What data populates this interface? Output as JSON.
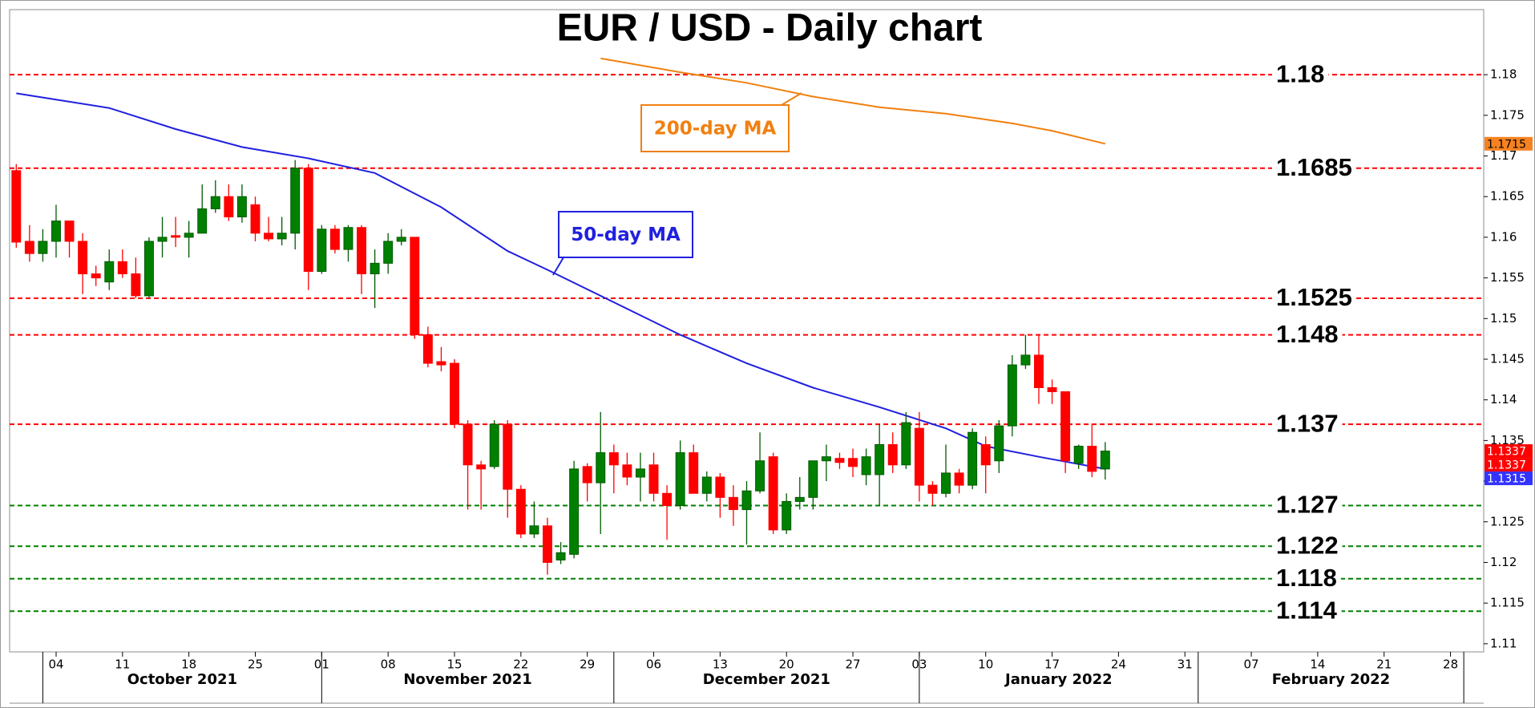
{
  "chart_data": {
    "type": "candlestick",
    "title": "EUR / USD - Daily chart",
    "xlim": [
      "2021-09-29",
      "2022-03-02"
    ],
    "ylim": [
      1.109,
      1.188
    ],
    "yticks": [
      1.11,
      1.115,
      1.12,
      1.125,
      1.13,
      1.135,
      1.14,
      1.145,
      1.15,
      1.155,
      1.16,
      1.165,
      1.17,
      1.175,
      1.18
    ],
    "xticks": [
      {
        "value": "2021-10-04",
        "label": "04"
      },
      {
        "value": "2021-10-11",
        "label": "11"
      },
      {
        "value": "2021-10-18",
        "label": "18"
      },
      {
        "value": "2021-10-25",
        "label": "25"
      },
      {
        "value": "2021-11-01",
        "label": "01"
      },
      {
        "value": "2021-11-08",
        "label": "08"
      },
      {
        "value": "2021-11-15",
        "label": "15"
      },
      {
        "value": "2021-11-22",
        "label": "22"
      },
      {
        "value": "2021-11-29",
        "label": "29"
      },
      {
        "value": "2021-12-06",
        "label": "06"
      },
      {
        "value": "2021-12-13",
        "label": "13"
      },
      {
        "value": "2021-12-20",
        "label": "20"
      },
      {
        "value": "2021-12-27",
        "label": "27"
      },
      {
        "value": "2022-01-03",
        "label": "03"
      },
      {
        "value": "2022-01-10",
        "label": "10"
      },
      {
        "value": "2022-01-17",
        "label": "17"
      },
      {
        "value": "2022-01-24",
        "label": "24"
      },
      {
        "value": "2022-01-31",
        "label": "31"
      },
      {
        "value": "2022-02-07",
        "label": "07"
      },
      {
        "value": "2022-02-14",
        "label": "14"
      },
      {
        "value": "2022-02-21",
        "label": "21"
      },
      {
        "value": "2022-02-28",
        "label": "28"
      }
    ],
    "months": [
      {
        "value": "2021-10",
        "label": "October 2021"
      },
      {
        "value": "2021-11",
        "label": "November 2021"
      },
      {
        "value": "2021-12",
        "label": "December 2021"
      },
      {
        "value": "2022-01",
        "label": "January 2022"
      },
      {
        "value": "2022-02",
        "label": "February 2022"
      }
    ],
    "up_color": "#008000",
    "down_color": "#ff0000",
    "x": [
      "2021-09-29",
      "2021-09-30",
      "2021-10-01",
      "2021-10-04",
      "2021-10-05",
      "2021-10-06",
      "2021-10-07",
      "2021-10-08",
      "2021-10-11",
      "2021-10-12",
      "2021-10-13",
      "2021-10-14",
      "2021-10-15",
      "2021-10-18",
      "2021-10-19",
      "2021-10-20",
      "2021-10-21",
      "2021-10-22",
      "2021-10-25",
      "2021-10-26",
      "2021-10-27",
      "2021-10-28",
      "2021-10-29",
      "2021-11-01",
      "2021-11-02",
      "2021-11-03",
      "2021-11-04",
      "2021-11-05",
      "2021-11-08",
      "2021-11-09",
      "2021-11-10",
      "2021-11-11",
      "2021-11-12",
      "2021-11-15",
      "2021-11-16",
      "2021-11-17",
      "2021-11-18",
      "2021-11-19",
      "2021-11-22",
      "2021-11-23",
      "2021-11-24",
      "2021-11-25",
      "2021-11-26",
      "2021-11-29",
      "2021-11-30",
      "2021-12-01",
      "2021-12-02",
      "2021-12-03",
      "2021-12-06",
      "2021-12-07",
      "2021-12-08",
      "2021-12-09",
      "2021-12-10",
      "2021-12-13",
      "2021-12-14",
      "2021-12-15",
      "2021-12-16",
      "2021-12-17",
      "2021-12-20",
      "2021-12-21",
      "2021-12-22",
      "2021-12-23",
      "2021-12-24",
      "2021-12-27",
      "2021-12-28",
      "2021-12-29",
      "2021-12-30",
      "2021-12-31",
      "2022-01-03",
      "2022-01-04",
      "2022-01-05",
      "2022-01-06",
      "2022-01-07",
      "2022-01-10",
      "2022-01-11",
      "2022-01-12",
      "2022-01-13",
      "2022-01-14",
      "2022-01-17",
      "2022-01-18",
      "2022-01-19",
      "2022-01-20",
      "2022-01-21"
    ],
    "open": [
      1.1682,
      1.1595,
      1.158,
      1.1595,
      1.162,
      1.1595,
      1.1555,
      1.1545,
      1.157,
      1.1555,
      1.1528,
      1.1595,
      1.1602,
      1.16,
      1.1605,
      1.1635,
      1.165,
      1.1625,
      1.164,
      1.1605,
      1.1598,
      1.1605,
      1.1685,
      1.1558,
      1.161,
      1.1585,
      1.1612,
      1.1555,
      1.1568,
      1.1595,
      1.16,
      1.148,
      1.1447,
      1.1445,
      1.137,
      1.132,
      1.1318,
      1.137,
      1.129,
      1.1235,
      1.1245,
      1.1203,
      1.121,
      1.1318,
      1.1298,
      1.1335,
      1.132,
      1.1305,
      1.132,
      1.1285,
      1.127,
      1.1335,
      1.1285,
      1.1305,
      1.128,
      1.1265,
      1.1288,
      1.133,
      1.124,
      1.1275,
      1.128,
      1.1325,
      1.1328,
      1.1328,
      1.1308,
      1.1308,
      1.1345,
      1.132,
      1.1365,
      1.1295,
      1.1285,
      1.131,
      1.1295,
      1.1345,
      1.1325,
      1.1368,
      1.1443,
      1.1455,
      1.1415,
      1.141,
      1.1322,
      1.1343,
      1.1315
    ],
    "high": [
      1.169,
      1.1615,
      1.161,
      1.164,
      1.162,
      1.1605,
      1.1565,
      1.1585,
      1.1585,
      1.1575,
      1.16,
      1.1625,
      1.1625,
      1.162,
      1.1665,
      1.167,
      1.1665,
      1.1665,
      1.165,
      1.1625,
      1.1625,
      1.1695,
      1.169,
      1.1615,
      1.1615,
      1.1615,
      1.1615,
      1.1585,
      1.1605,
      1.161,
      1.16,
      1.149,
      1.1465,
      1.145,
      1.1375,
      1.1325,
      1.1375,
      1.1375,
      1.1295,
      1.1275,
      1.1255,
      1.1225,
      1.1325,
      1.1322,
      1.1385,
      1.1345,
      1.1335,
      1.1335,
      1.1335,
      1.1295,
      1.135,
      1.1345,
      1.1312,
      1.131,
      1.1295,
      1.13,
      1.136,
      1.1335,
      1.1285,
      1.1305,
      1.1325,
      1.1345,
      1.1335,
      1.134,
      1.134,
      1.137,
      1.136,
      1.1385,
      1.1385,
      1.13,
      1.1345,
      1.1315,
      1.1365,
      1.1355,
      1.1375,
      1.1455,
      1.148,
      1.148,
      1.1425,
      1.141,
      1.1345,
      1.137,
      1.1348
    ],
    "low": [
      1.1587,
      1.157,
      1.157,
      1.1575,
      1.1575,
      1.153,
      1.154,
      1.1535,
      1.155,
      1.1525,
      1.1525,
      1.1575,
      1.1588,
      1.1575,
      1.1605,
      1.163,
      1.162,
      1.1618,
      1.1595,
      1.1595,
      1.159,
      1.1585,
      1.1535,
      1.1555,
      1.158,
      1.157,
      1.153,
      1.1513,
      1.1555,
      1.159,
      1.1475,
      1.144,
      1.1435,
      1.1365,
      1.1265,
      1.1265,
      1.1315,
      1.1255,
      1.123,
      1.123,
      1.1185,
      1.1198,
      1.1205,
      1.1275,
      1.1235,
      1.1285,
      1.1295,
      1.1275,
      1.1275,
      1.1228,
      1.1265,
      1.1285,
      1.1275,
      1.1255,
      1.1245,
      1.1222,
      1.1285,
      1.1235,
      1.1235,
      1.1265,
      1.1265,
      1.13,
      1.1315,
      1.1305,
      1.1295,
      1.127,
      1.131,
      1.1315,
      1.1275,
      1.127,
      1.128,
      1.1285,
      1.129,
      1.1285,
      1.131,
      1.1355,
      1.1438,
      1.1395,
      1.1395,
      1.131,
      1.1315,
      1.1305,
      1.1302
    ],
    "close": [
      1.1594,
      1.158,
      1.1595,
      1.162,
      1.1595,
      1.1555,
      1.155,
      1.157,
      1.1555,
      1.1528,
      1.1595,
      1.16,
      1.16,
      1.1605,
      1.1635,
      1.165,
      1.1625,
      1.165,
      1.1605,
      1.1598,
      1.1605,
      1.1685,
      1.1558,
      1.161,
      1.1585,
      1.1612,
      1.1555,
      1.1568,
      1.1595,
      1.16,
      1.148,
      1.1445,
      1.1443,
      1.137,
      1.132,
      1.1315,
      1.137,
      1.129,
      1.1235,
      1.1245,
      1.12,
      1.1212,
      1.1315,
      1.1298,
      1.1335,
      1.132,
      1.1305,
      1.1315,
      1.1285,
      1.127,
      1.1335,
      1.1285,
      1.1305,
      1.128,
      1.1265,
      1.1288,
      1.1325,
      1.124,
      1.1275,
      1.128,
      1.1325,
      1.133,
      1.1323,
      1.1318,
      1.133,
      1.1345,
      1.132,
      1.1372,
      1.1295,
      1.1285,
      1.131,
      1.1295,
      1.136,
      1.132,
      1.1368,
      1.1443,
      1.1455,
      1.1415,
      1.141,
      1.1325,
      1.1343,
      1.1312,
      1.1337
    ],
    "series": [
      {
        "name": "50-day MA",
        "color": "#2020e0",
        "x": [
          "2021-09-29",
          "2021-10-08",
          "2021-10-15",
          "2021-10-22",
          "2021-10-29",
          "2021-11-05",
          "2021-11-12",
          "2021-11-19",
          "2021-11-24",
          "2021-12-01",
          "2021-12-08",
          "2021-12-15",
          "2021-12-22",
          "2021-12-29",
          "2022-01-05",
          "2022-01-10",
          "2022-01-14",
          "2022-01-21"
        ],
        "values": [
          1.1777,
          1.1759,
          1.1733,
          1.1711,
          1.1697,
          1.1679,
          1.1637,
          1.1583,
          1.156,
          1.152,
          1.148,
          1.1445,
          1.1415,
          1.1391,
          1.1365,
          1.1343,
          1.133,
          1.1315
        ]
      },
      {
        "name": "200-day MA",
        "color": "#f08010",
        "x": [
          "2021-11-30",
          "2021-12-08",
          "2021-12-15",
          "2021-12-22",
          "2021-12-29",
          "2022-01-05",
          "2022-01-12",
          "2022-01-17",
          "2022-01-21"
        ],
        "values": [
          1.182,
          1.1803,
          1.179,
          1.1773,
          1.176,
          1.1752,
          1.174,
          1.1731,
          1.1715
        ]
      }
    ],
    "levels": [
      {
        "value": 1.18,
        "color": "#ff0000"
      },
      {
        "value": 1.1685,
        "color": "#ff0000"
      },
      {
        "value": 1.1525,
        "color": "#ff0000"
      },
      {
        "value": 1.148,
        "color": "#ff0000"
      },
      {
        "value": 1.137,
        "color": "#ff0000"
      },
      {
        "value": 1.127,
        "color": "#008000"
      },
      {
        "value": 1.122,
        "color": "#008000"
      },
      {
        "value": 1.118,
        "color": "#008000"
      },
      {
        "value": 1.114,
        "color": "#008000"
      }
    ],
    "price_tags": [
      {
        "value": 1.1715,
        "color": "#f58220"
      },
      {
        "value": 1.1337,
        "color": "#ff0000"
      },
      {
        "value": 1.1337,
        "color": "#ff0000"
      },
      {
        "value": 1.1315,
        "color": "#3333ff"
      }
    ]
  }
}
